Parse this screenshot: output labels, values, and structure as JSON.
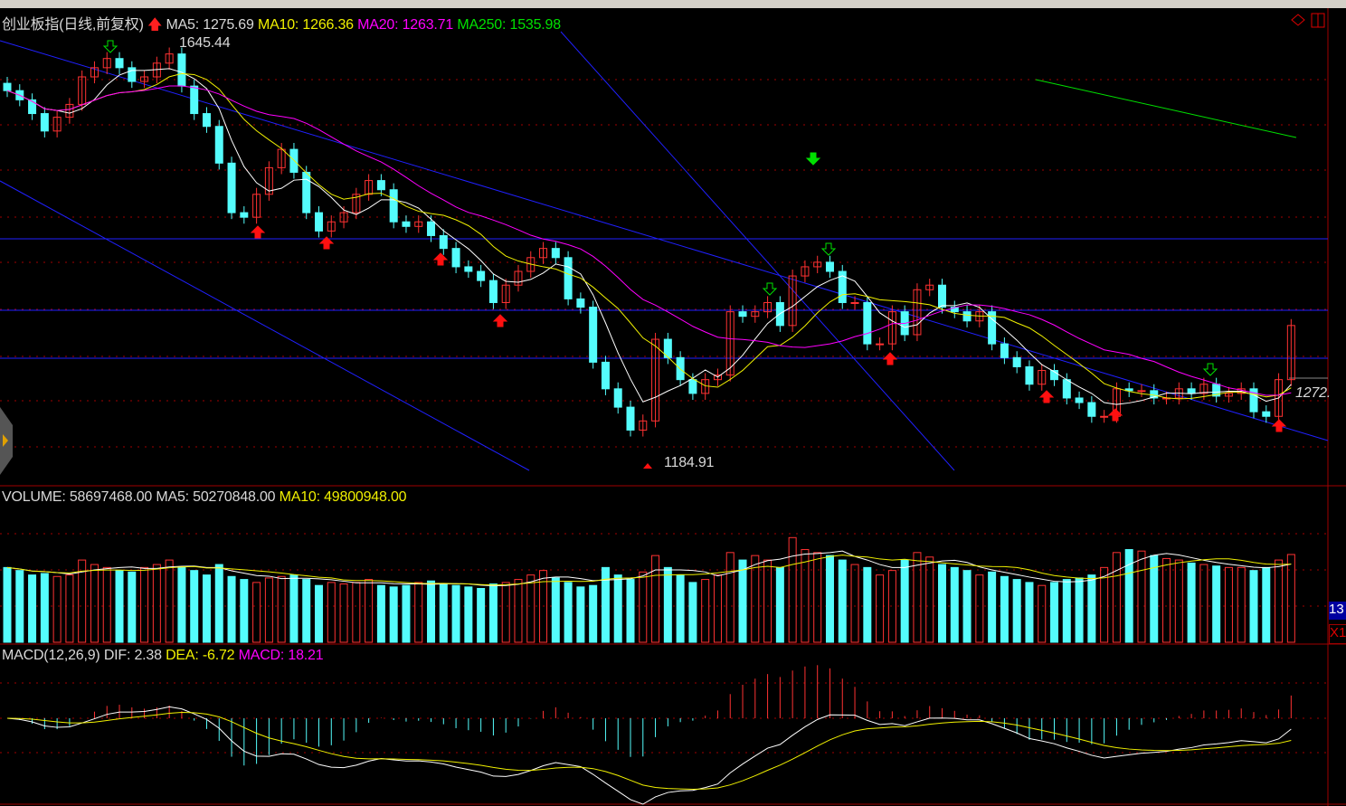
{
  "header": {
    "title": "创业板指(日线,前复权)",
    "ma5": "MA5: 1275.69",
    "ma10": "MA10: 1266.36",
    "ma20": "MA20: 1263.71",
    "ma250": "MA250: 1535.98"
  },
  "volume_header": {
    "volume": "VOLUME: 58697468.00",
    "ma5": "MA5: 50270848.00",
    "ma10": "MA10: 49800948.00"
  },
  "macd_header": {
    "name": "MACD(12,26,9)",
    "dif": "DIF: 2.38",
    "dea": "DEA: -6.72",
    "macd": "MACD: 18.21"
  },
  "annotations": {
    "high": "1645.44",
    "low": "1184.91",
    "last": "1272."
  },
  "right_axis": {
    "box1": "13",
    "box2": "X1"
  },
  "colors": {
    "up": "#ff3232",
    "down": "#54fcfc",
    "ma5": "#ffffff",
    "ma10": "#f0f000",
    "ma20": "#ff00ff",
    "ma250": "#00e000",
    "trendline": "#2020ff",
    "grid": "#a00000"
  },
  "chart_data": {
    "type": "candlestick",
    "title": "创业板指(日线,前复权)",
    "close": [
      1591,
      1581,
      1566,
      1547,
      1562,
      1576,
      1606,
      1616,
      1626,
      1616,
      1601,
      1606,
      1621,
      1631,
      1596,
      1566,
      1552,
      1512,
      1458,
      1453,
      1478,
      1507,
      1527,
      1502,
      1458,
      1438,
      1448,
      1458,
      1478,
      1493,
      1483,
      1448,
      1443,
      1448,
      1433,
      1419,
      1399,
      1394,
      1384,
      1360,
      1379,
      1394,
      1409,
      1419,
      1409,
      1364,
      1355,
      1295,
      1266,
      1246,
      1221,
      1231,
      1320,
      1300,
      1276,
      1261,
      1276,
      1281,
      1350,
      1345,
      1350,
      1360,
      1335,
      1389,
      1399,
      1404,
      1394,
      1360,
      1360,
      1315,
      1315,
      1350,
      1325,
      1374,
      1379,
      1355,
      1350,
      1340,
      1350,
      1315,
      1300,
      1290,
      1271,
      1286,
      1276,
      1256,
      1251,
      1236,
      1236,
      1266,
      1264,
      1264,
      1256,
      1256,
      1266,
      1261,
      1271,
      1258,
      1261,
      1266,
      1241,
      1236,
      1276,
      1335
    ],
    "volume": [
      50000000,
      48000000,
      45000000,
      46000000,
      44000000,
      45000000,
      55000000,
      52000000,
      50000000,
      48000000,
      47000000,
      50000000,
      52000000,
      55000000,
      50000000,
      48000000,
      45000000,
      52000000,
      44000000,
      42000000,
      40000000,
      43000000,
      44000000,
      45000000,
      42000000,
      38000000,
      40000000,
      39000000,
      40000000,
      42000000,
      38000000,
      37000000,
      38000000,
      40000000,
      41000000,
      39000000,
      38000000,
      37000000,
      36000000,
      39000000,
      40000000,
      42000000,
      45000000,
      48000000,
      43000000,
      40000000,
      37000000,
      38000000,
      50000000,
      45000000,
      42000000,
      47000000,
      58000000,
      50000000,
      45000000,
      40000000,
      42000000,
      45000000,
      60000000,
      55000000,
      58000000,
      55000000,
      50000000,
      70000000,
      62000000,
      60000000,
      58000000,
      55000000,
      52000000,
      50000000,
      45000000,
      48000000,
      55000000,
      60000000,
      57000000,
      52000000,
      50000000,
      48000000,
      45000000,
      47000000,
      44000000,
      42000000,
      40000000,
      38000000,
      40000000,
      42000000,
      43000000,
      45000000,
      50000000,
      60000000,
      62000000,
      61000000,
      58000000,
      56000000,
      55000000,
      53000000,
      52000000,
      51000000,
      50000000,
      50000000,
      48000000,
      50000000,
      55000000,
      58697468
    ],
    "indicators": [
      "MA5",
      "MA10",
      "MA20",
      "MA250",
      "VOLUME MA5",
      "VOLUME MA10",
      "MACD(12,26,9)"
    ],
    "price_high_marked": 1645.44,
    "price_low_marked": 1184.91,
    "grid": true
  }
}
